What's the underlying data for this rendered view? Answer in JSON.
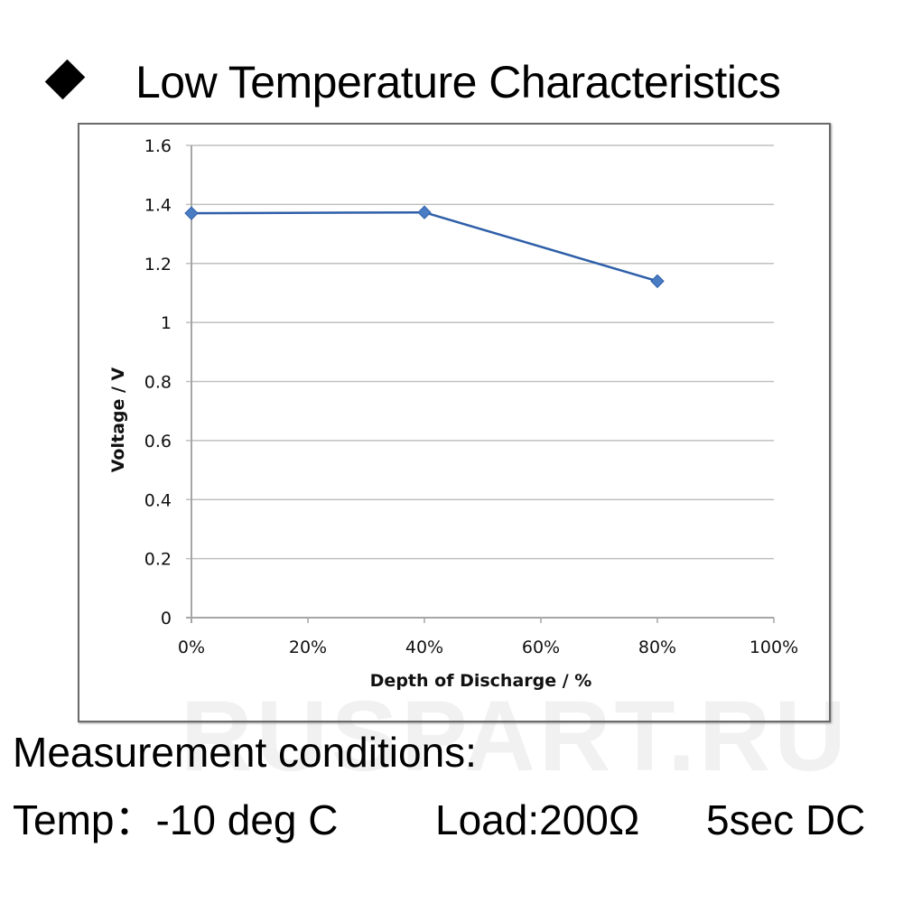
{
  "heading": {
    "bullet_icon": "black-diamond",
    "title": "Low Temperature Characteristics"
  },
  "watermark": "RUSPART.RU",
  "chart_data": {
    "type": "line",
    "title": "",
    "xlabel": "Depth of Discharge / %",
    "ylabel": "Voltage  /  V",
    "x": [
      0,
      40,
      80
    ],
    "x_unit": "%",
    "series": [
      {
        "name": "Voltage",
        "values": [
          1.37,
          1.373,
          1.14
        ],
        "color": "#2e5fa8",
        "marker": "diamond",
        "marker_color": "#4a7cc4"
      }
    ],
    "xlim": [
      0,
      100
    ],
    "ylim": [
      0,
      1.6
    ],
    "x_ticks": [
      0,
      20,
      40,
      60,
      80,
      100
    ],
    "x_tick_labels": [
      "0%",
      "20%",
      "40%",
      "60%",
      "80%",
      "100%"
    ],
    "y_ticks": [
      0,
      0.2,
      0.4,
      0.6,
      0.8,
      1.0,
      1.2,
      1.4,
      1.6
    ],
    "y_tick_labels": [
      "0",
      "0.2",
      "0.4",
      "0.6",
      "0.8",
      "1",
      "1.2",
      "1.4",
      "1.6"
    ],
    "grid": "horizontal",
    "legend": "none",
    "colors": {
      "gridline": "#bfbfbf",
      "axis": "#a6a6a6"
    }
  },
  "conditions": {
    "heading": "Measurement conditions:",
    "temp": "Temp：-10 deg C",
    "load": "Load:200Ω",
    "duration": "5sec DC"
  }
}
